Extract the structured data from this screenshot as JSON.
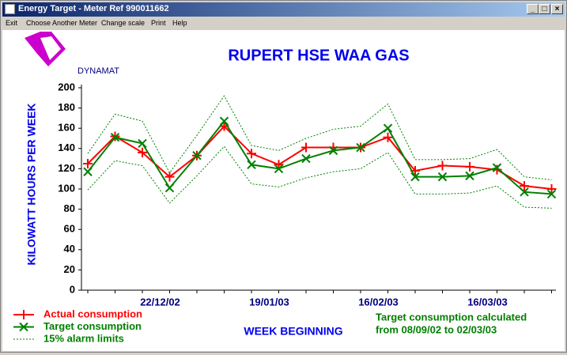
{
  "window": {
    "title": "Energy Target - Meter Ref 990011662",
    "menu": [
      "Exit",
      "Choose Another Meter",
      "Change scale",
      "Print",
      "Help"
    ]
  },
  "chart_data": {
    "type": "line",
    "title": "RUPERT HSE WAA GAS",
    "logo_text": "DYNAMAT",
    "x_label": "WEEK BEGINNING",
    "y_label": "KILOWATT HOURS PER WEEK",
    "note": [
      "Target consumption calculated",
      "from 08/09/02 to 02/03/03"
    ],
    "categories": [
      null,
      null,
      null,
      "22/12/02",
      null,
      null,
      null,
      "19/01/03",
      null,
      null,
      null,
      "16/02/03",
      null,
      null,
      null,
      "16/03/03",
      null,
      null
    ],
    "series": [
      {
        "name": "Actual consumption",
        "color": "#ff0000",
        "marker": "plus",
        "values": [
          125,
          152,
          136,
          112,
          133,
          162,
          135,
          124,
          141,
          141,
          141,
          151,
          118,
          123,
          122,
          119,
          103,
          100
        ]
      },
      {
        "name": "Target consumption",
        "color": "#008000",
        "marker": "x",
        "values": [
          117,
          151,
          145,
          101,
          133,
          167,
          124,
          120,
          130,
          138,
          141,
          160,
          112,
          112,
          113,
          121,
          97,
          95
        ]
      },
      {
        "name": "15% alarm limits",
        "color": "#008000",
        "dashed": true,
        "values": [
          135,
          174,
          167,
          116,
          153,
          192,
          143,
          138,
          150,
          159,
          162,
          184,
          129,
          129,
          130,
          139,
          112,
          109
        ]
      },
      {
        "color": "#008000",
        "dashed": true,
        "values": [
          99,
          128,
          123,
          86,
          113,
          142,
          105,
          102,
          111,
          117,
          120,
          136,
          95,
          95,
          96,
          103,
          82,
          81
        ]
      }
    ],
    "ylim": [
      0,
      200
    ],
    "yticks": [
      0,
      20,
      40,
      60,
      80,
      100,
      120,
      140,
      160,
      180,
      200
    ]
  }
}
